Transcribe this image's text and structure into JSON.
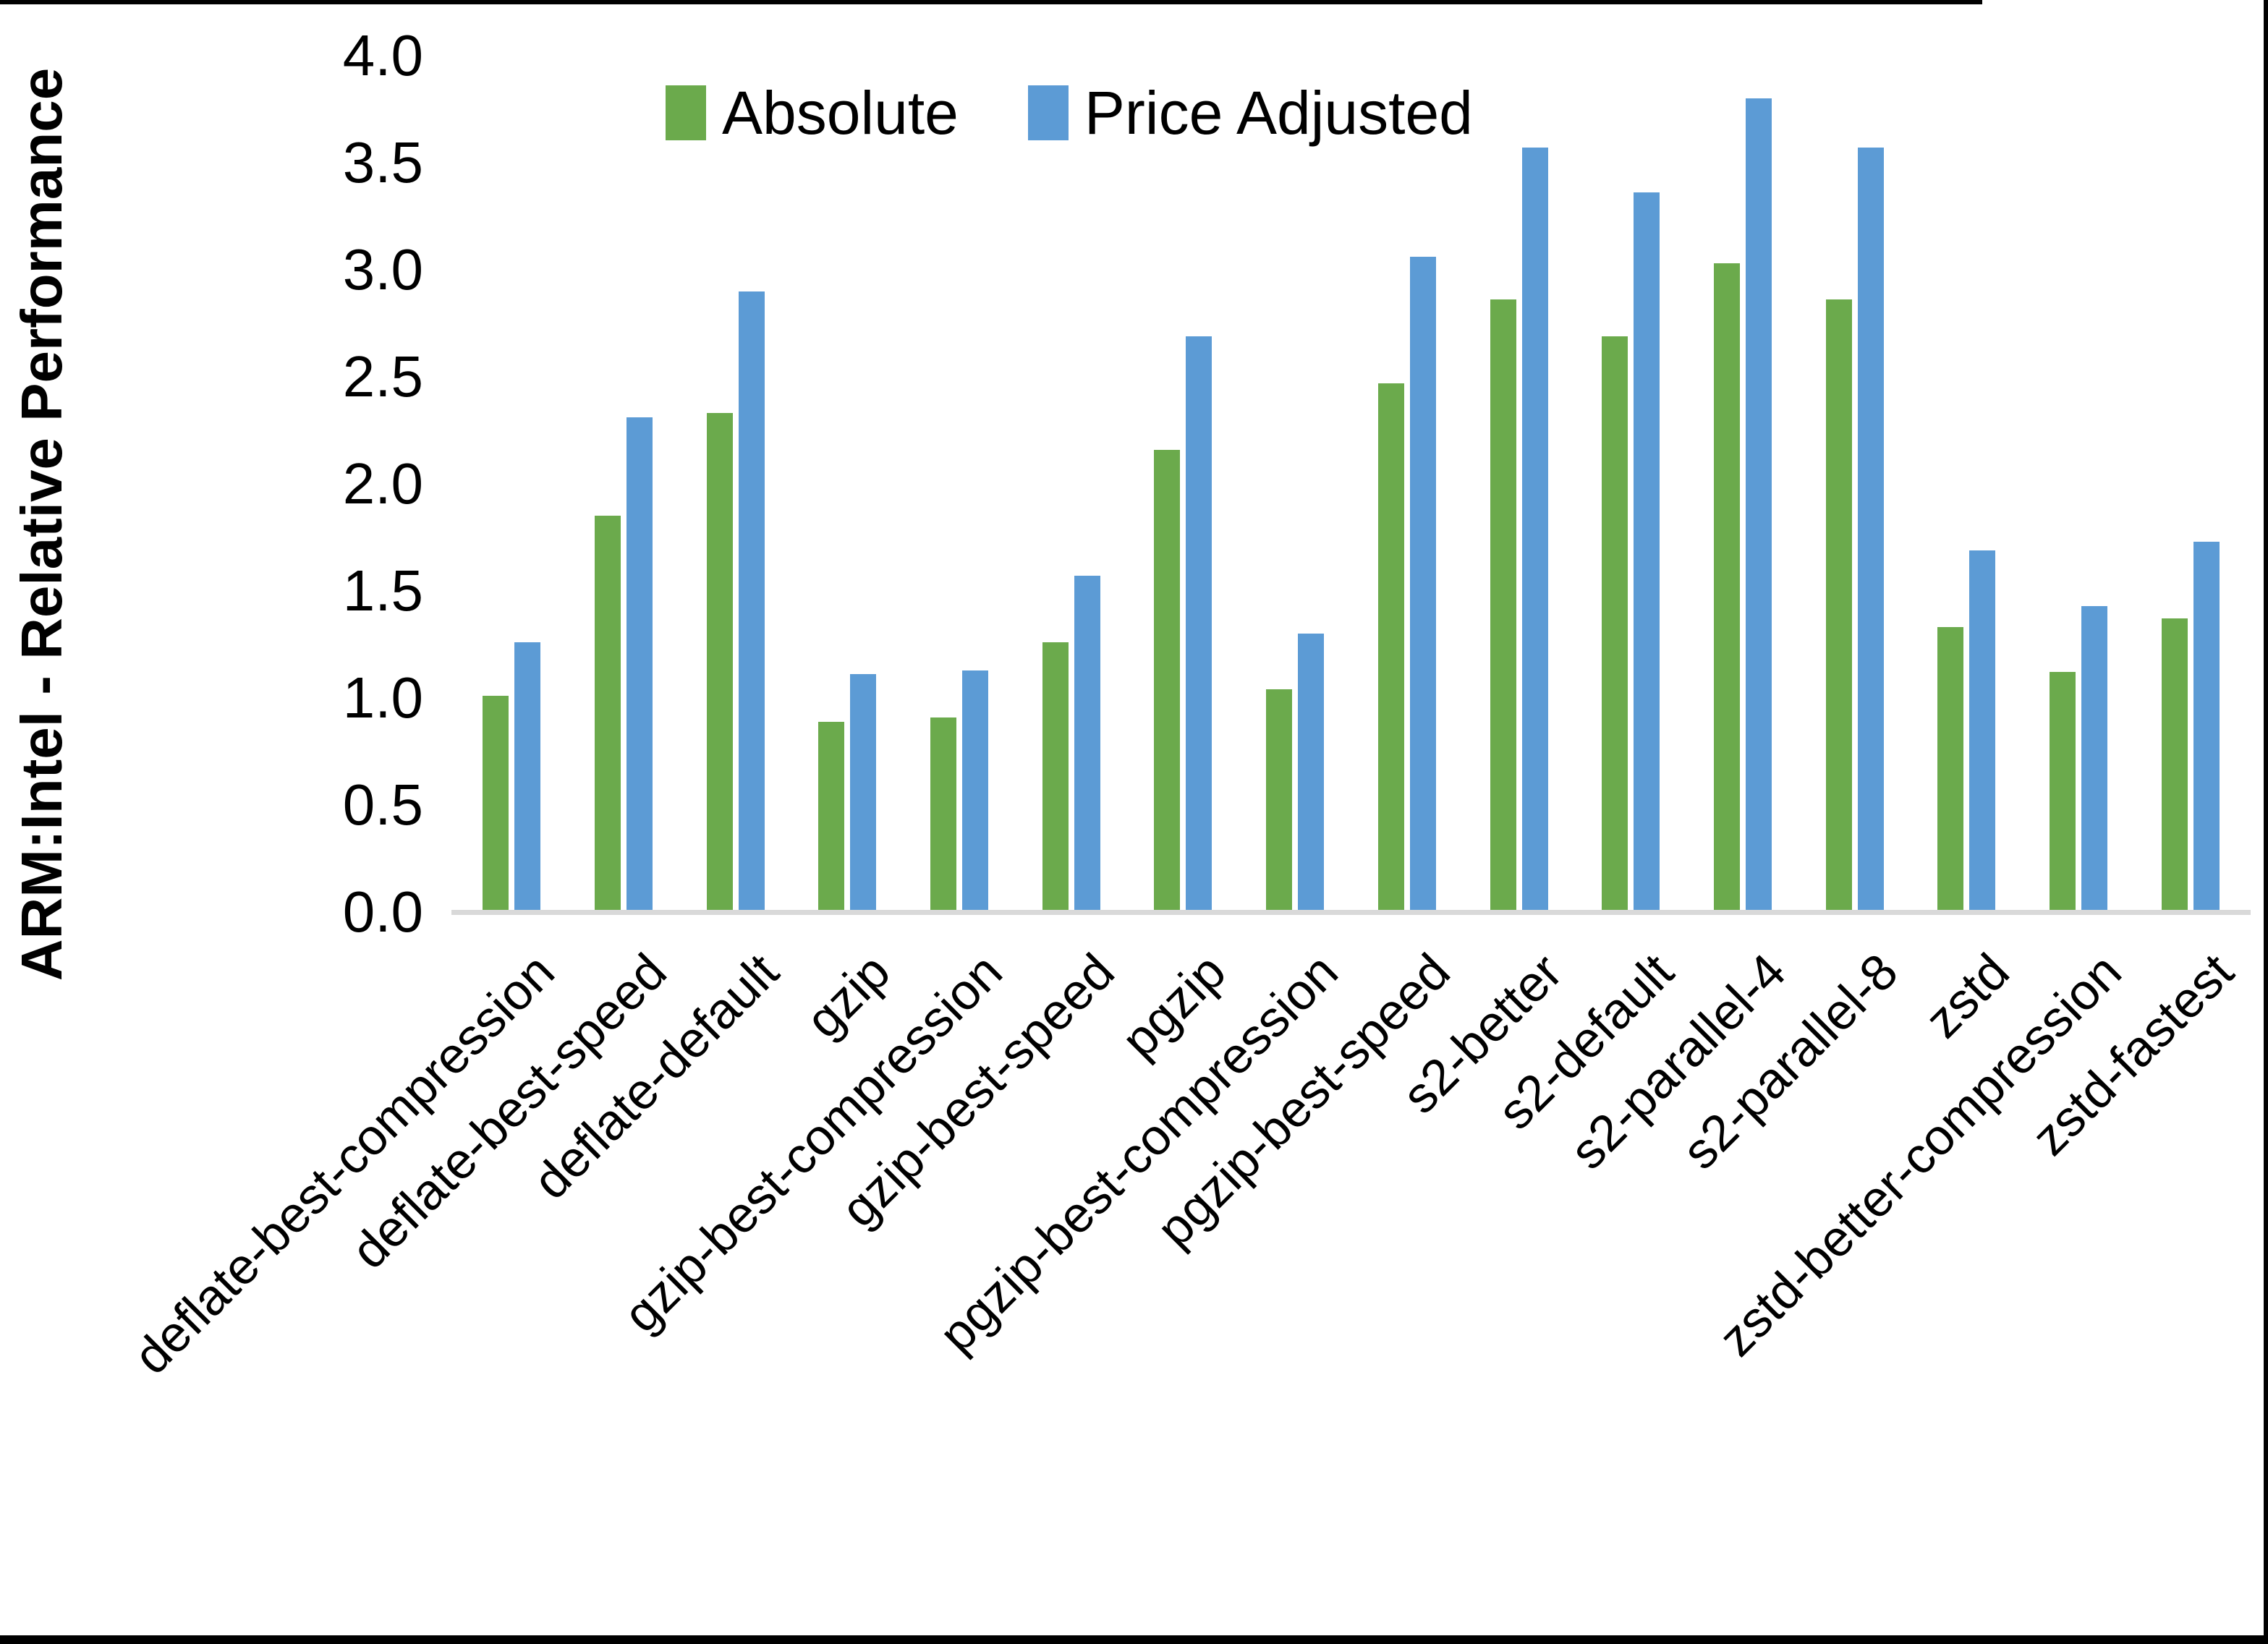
{
  "page": {
    "background_color": "#FFFFFF",
    "frame_color": "#000000"
  },
  "chart_data": {
    "type": "bar",
    "title": "",
    "xlabel": "",
    "ylabel": "ARM:Intel - Relative Performance",
    "ylim": [
      0.0,
      4.0
    ],
    "ytick_step": 0.5,
    "ytick_labels": [
      "0.0",
      "0.5",
      "1.0",
      "1.5",
      "2.0",
      "2.5",
      "3.0",
      "3.5",
      "4.0"
    ],
    "grid": false,
    "legend_position": "top-center",
    "axis_line_color": "#D9D9D9",
    "text_color": "#000000",
    "categories": [
      "deflate-best-compression",
      "deflate-best-speed",
      "deflate-default",
      "gzip",
      "gzip-best-compression",
      "gzip-best-speed",
      "pgzip",
      "pgzip-best-compression",
      "pgzip-best-speed",
      "s2-better",
      "s2-default",
      "s2-parallel-4",
      "s2-parallel-8",
      "zstd",
      "zstd-better-compression",
      "zstd-fastest"
    ],
    "series": [
      {
        "name": "Absolute",
        "color": "#6BAA4C",
        "values": [
          1.01,
          1.85,
          2.33,
          0.89,
          0.91,
          1.26,
          2.16,
          1.04,
          2.47,
          2.86,
          2.69,
          3.03,
          2.86,
          1.33,
          1.12,
          1.37
        ]
      },
      {
        "name": "Price Adjusted",
        "color": "#5C9BD5",
        "values": [
          1.26,
          2.31,
          2.9,
          1.11,
          1.13,
          1.57,
          2.69,
          1.3,
          3.06,
          3.57,
          3.36,
          3.8,
          3.57,
          1.69,
          1.43,
          1.73
        ]
      }
    ]
  }
}
